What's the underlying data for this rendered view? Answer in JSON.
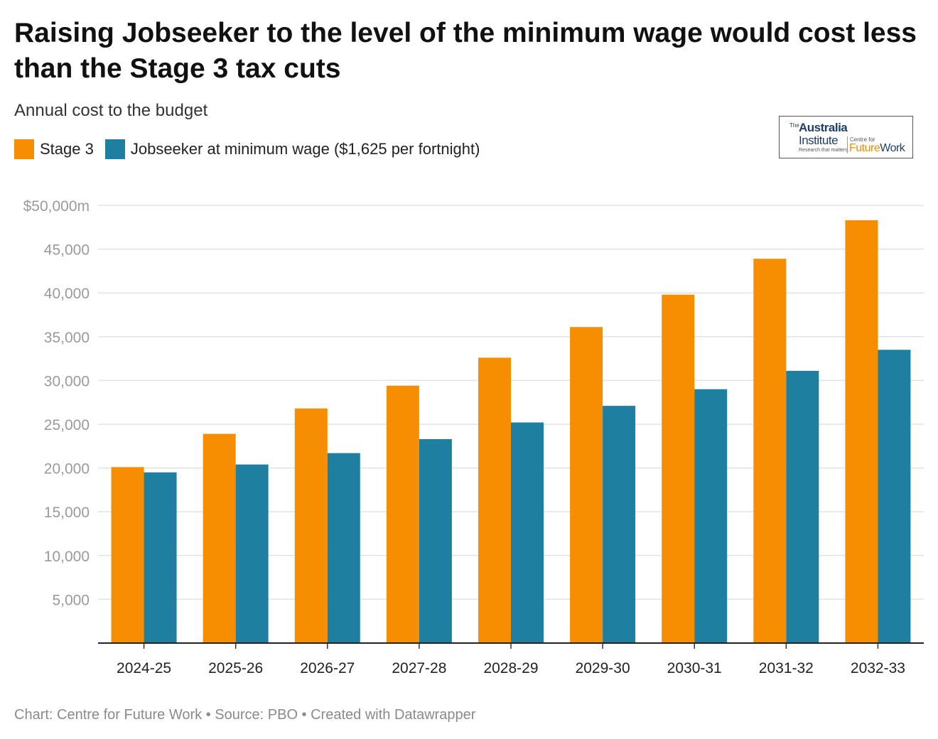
{
  "header": {
    "title": "Raising Jobseeker to the level of the minimum wage would cost less than the Stage 3 tax cuts",
    "subtitle": "Annual cost to the budget"
  },
  "logo": {
    "the": "The",
    "australia": "Australia",
    "institute": "Institute",
    "tagline": "Research that matters.",
    "centre_for": "Centre for",
    "future": "Future",
    "work": "Work"
  },
  "footer": {
    "text": "Chart: Centre for Future Work • Source: PBO • Created with Datawrapper"
  },
  "chart_data": {
    "type": "bar",
    "title": "Raising Jobseeker to the level of the minimum wage would cost less than the Stage 3 tax cuts",
    "subtitle": "Annual cost to the budget",
    "xlabel": "",
    "ylabel": "",
    "ylim": [
      0,
      50000
    ],
    "yticks": [
      5000,
      10000,
      15000,
      20000,
      25000,
      30000,
      35000,
      40000,
      45000,
      50000
    ],
    "ytick_labels": [
      "5,000",
      "10,000",
      "15,000",
      "20,000",
      "25,000",
      "30,000",
      "35,000",
      "40,000",
      "45,000",
      "$50,000m"
    ],
    "grid": true,
    "legend_position": "top-left",
    "categories": [
      "2024-25",
      "2025-26",
      "2026-27",
      "2027-28",
      "2028-29",
      "2029-30",
      "2030-31",
      "2031-32",
      "2032-33"
    ],
    "series": [
      {
        "name": "Stage 3",
        "color": "#f78d00",
        "values": [
          20100,
          23900,
          26800,
          29400,
          32600,
          36100,
          39800,
          43900,
          48300
        ]
      },
      {
        "name": "Jobseeker at minimum wage ($1,625 per fortnight)",
        "color": "#1f7fa1",
        "values": [
          19500,
          20400,
          21700,
          23300,
          25200,
          27100,
          29000,
          31100,
          33500
        ]
      }
    ]
  }
}
